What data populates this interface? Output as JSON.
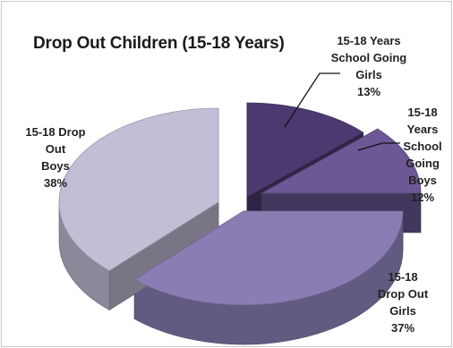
{
  "chart_data": {
    "type": "pie",
    "style": "3d-exploded",
    "title": "Drop Out Children  (15-18 Years)",
    "legend": "none",
    "slices": [
      {
        "category": "15-18 Years School Going Girls",
        "value": 13,
        "label_lines": [
          "15-18 Years",
          "School Going",
          "Girls",
          "13%"
        ],
        "color": "#4b3a70"
      },
      {
        "category": "15-18 Years School Going Boys",
        "value": 12,
        "label_lines": [
          "15-18",
          "Years",
          "School",
          "Going",
          "Boys",
          "12%"
        ],
        "color": "#6b5894"
      },
      {
        "category": "15-18 Drop Out Girls",
        "value": 37,
        "label_lines": [
          "15-18",
          "Drop Out",
          "Girls",
          "37%"
        ],
        "color": "#8a7db3"
      },
      {
        "category": "15-18 Drop Out Boys",
        "value": 38,
        "label_lines": [
          "15-18 Drop",
          "Out",
          "Boys",
          "38%"
        ],
        "color": "#c3bdd6"
      }
    ]
  }
}
